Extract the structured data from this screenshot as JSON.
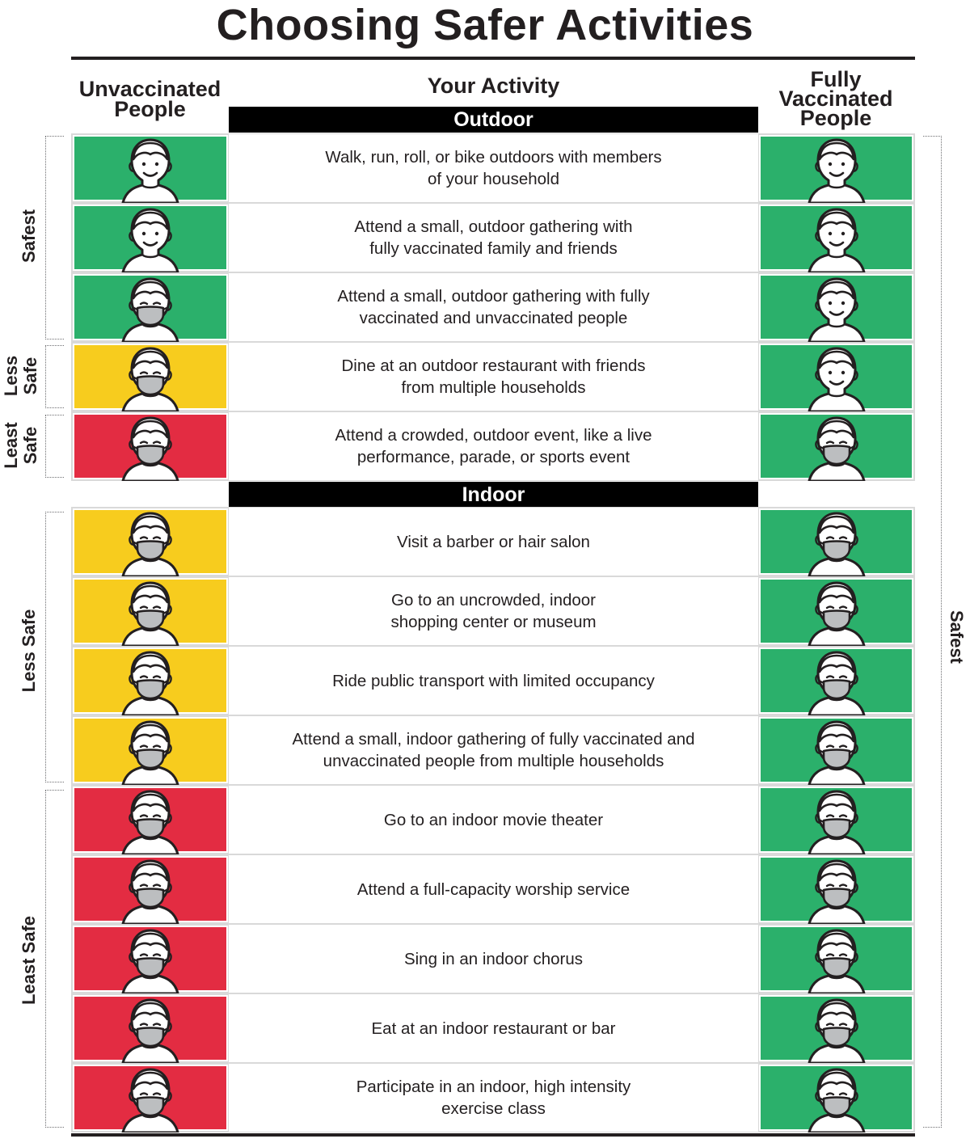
{
  "title": "Choosing Safer Activities",
  "headers": {
    "unvaccinated": [
      "Unvaccinated",
      "People"
    ],
    "activity": "Your Activity",
    "vaccinated": [
      "Fully",
      "Vaccinated",
      "People"
    ]
  },
  "colors": {
    "green": "#2bb06b",
    "yellow": "#f7cc1e",
    "red": "#e32c42",
    "mask": "#bcbec0",
    "bar": "#000000"
  },
  "sections": [
    {
      "name": "Outdoor",
      "rows": [
        {
          "activity": [
            "Walk, run, roll, or bike outdoors with members",
            "of your household"
          ],
          "unvaccinated": {
            "level": "green",
            "icon": "face-no-mask-icon"
          },
          "vaccinated": {
            "level": "green",
            "icon": "face-no-mask-icon"
          }
        },
        {
          "activity": [
            "Attend a small, outdoor gathering with",
            "fully vaccinated family and friends"
          ],
          "unvaccinated": {
            "level": "green",
            "icon": "face-no-mask-icon"
          },
          "vaccinated": {
            "level": "green",
            "icon": "face-no-mask-icon"
          }
        },
        {
          "activity": [
            "Attend a small, outdoor gathering with fully",
            "vaccinated and unvaccinated people"
          ],
          "unvaccinated": {
            "level": "green",
            "icon": "face-mask-icon"
          },
          "vaccinated": {
            "level": "green",
            "icon": "face-no-mask-icon"
          }
        },
        {
          "activity": [
            "Dine at an outdoor restaurant with friends",
            "from multiple households"
          ],
          "unvaccinated": {
            "level": "yellow",
            "icon": "face-mask-icon"
          },
          "vaccinated": {
            "level": "green",
            "icon": "face-no-mask-icon"
          }
        },
        {
          "activity": [
            "Attend a crowded, outdoor event, like a live",
            "performance, parade, or sports event"
          ],
          "unvaccinated": {
            "level": "red",
            "icon": "face-mask-icon"
          },
          "vaccinated": {
            "level": "green",
            "icon": "face-mask-icon"
          }
        }
      ]
    },
    {
      "name": "Indoor",
      "rows": [
        {
          "activity": [
            "Visit a barber or hair salon"
          ],
          "unvaccinated": {
            "level": "yellow",
            "icon": "face-mask-icon"
          },
          "vaccinated": {
            "level": "green",
            "icon": "face-mask-icon"
          }
        },
        {
          "activity": [
            "Go to an uncrowded, indoor",
            "shopping center or museum"
          ],
          "unvaccinated": {
            "level": "yellow",
            "icon": "face-mask-icon"
          },
          "vaccinated": {
            "level": "green",
            "icon": "face-mask-icon"
          }
        },
        {
          "activity": [
            "Ride public transport with limited occupancy"
          ],
          "unvaccinated": {
            "level": "yellow",
            "icon": "face-mask-icon"
          },
          "vaccinated": {
            "level": "green",
            "icon": "face-mask-icon"
          }
        },
        {
          "activity": [
            "Attend a small, indoor gathering of fully vaccinated and",
            "unvaccinated people from multiple households"
          ],
          "unvaccinated": {
            "level": "yellow",
            "icon": "face-mask-icon"
          },
          "vaccinated": {
            "level": "green",
            "icon": "face-mask-icon"
          }
        },
        {
          "activity": [
            "Go to an indoor movie theater"
          ],
          "unvaccinated": {
            "level": "red",
            "icon": "face-mask-icon"
          },
          "vaccinated": {
            "level": "green",
            "icon": "face-mask-icon"
          }
        },
        {
          "activity": [
            "Attend a full-capacity worship service"
          ],
          "unvaccinated": {
            "level": "red",
            "icon": "face-mask-icon"
          },
          "vaccinated": {
            "level": "green",
            "icon": "face-mask-icon"
          }
        },
        {
          "activity": [
            "Sing in an indoor chorus"
          ],
          "unvaccinated": {
            "level": "red",
            "icon": "face-mask-icon"
          },
          "vaccinated": {
            "level": "green",
            "icon": "face-mask-icon"
          }
        },
        {
          "activity": [
            "Eat at an indoor restaurant or bar"
          ],
          "unvaccinated": {
            "level": "red",
            "icon": "face-mask-icon"
          },
          "vaccinated": {
            "level": "green",
            "icon": "face-mask-icon"
          }
        },
        {
          "activity": [
            "Participate in an indoor, high intensity",
            "exercise class"
          ],
          "unvaccinated": {
            "level": "red",
            "icon": "face-mask-icon"
          },
          "vaccinated": {
            "level": "green",
            "icon": "face-mask-icon"
          }
        }
      ]
    }
  ],
  "side_labels": {
    "left": [
      {
        "text": [
          "Safest"
        ]
      },
      {
        "text": [
          "Less",
          "Safe"
        ]
      },
      {
        "text": [
          "Least",
          "Safe"
        ]
      },
      {
        "text": [
          "Less Safe"
        ]
      },
      {
        "text": [
          "Least Safe"
        ]
      }
    ],
    "right": [
      {
        "text": [
          "Safest"
        ]
      }
    ]
  }
}
